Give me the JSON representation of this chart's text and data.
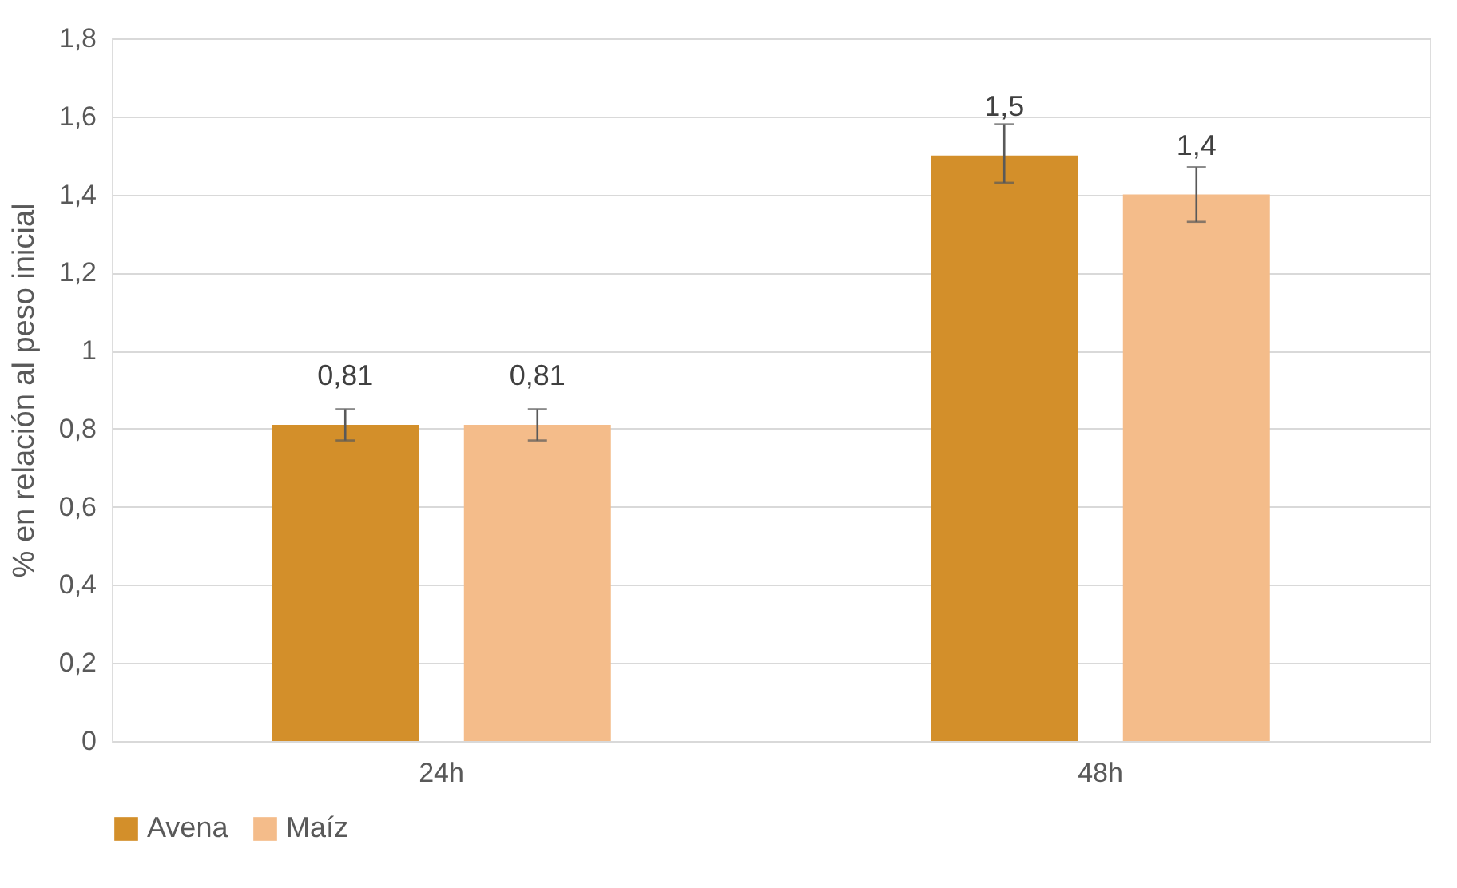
{
  "chart_data": {
    "type": "bar",
    "ylabel": "% en relación al peso inicial",
    "categories": [
      "24h",
      "48h"
    ],
    "series": [
      {
        "name": "Avena",
        "color": "#d38f2a",
        "values": [
          0.81,
          1.5
        ],
        "errors": [
          0.04,
          [
            1.43,
            1.58
          ]
        ],
        "value_labels": [
          "0,81",
          "1,5"
        ]
      },
      {
        "name": "Maíz",
        "color": "#f4bc8a",
        "values": [
          0.81,
          1.4
        ],
        "errors": [
          0.04,
          0.07
        ],
        "value_labels": [
          "0,81",
          "1,4"
        ]
      }
    ],
    "ylim": [
      0,
      1.8
    ],
    "yticks": [
      0,
      {
        "value": 0.2,
        "label": "0,2"
      },
      {
        "value": 0.4,
        "label": "0,4"
      },
      {
        "value": 0.6,
        "label": "0,6"
      },
      {
        "value": 0.8,
        "label": "0,8"
      },
      1,
      {
        "value": 1.2,
        "label": "1,2"
      },
      {
        "value": 1.4,
        "label": "1,4"
      },
      {
        "value": 1.6,
        "label": "1,6"
      },
      {
        "value": 1.8,
        "label": "1,8"
      }
    ],
    "grid": "y",
    "legend": "bottom"
  }
}
